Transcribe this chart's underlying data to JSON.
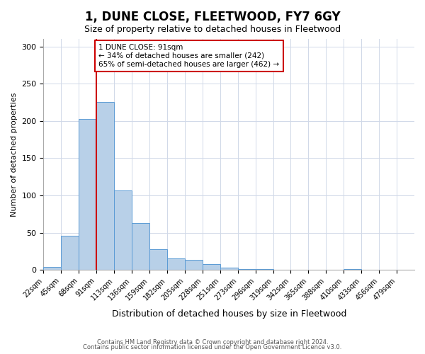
{
  "title": "1, DUNE CLOSE, FLEETWOOD, FY7 6GY",
  "subtitle": "Size of property relative to detached houses in Fleetwood",
  "xlabel": "Distribution of detached houses by size in Fleetwood",
  "ylabel": "Number of detached properties",
  "bar_values": [
    4,
    46,
    203,
    225,
    107,
    63,
    28,
    15,
    14,
    8,
    3,
    1,
    1,
    0,
    0,
    0,
    0,
    1
  ],
  "bin_labels": [
    "22sqm",
    "45sqm",
    "68sqm",
    "91sqm",
    "113sqm",
    "136sqm",
    "159sqm",
    "182sqm",
    "205sqm",
    "228sqm",
    "251sqm",
    "273sqm",
    "296sqm",
    "319sqm",
    "342sqm",
    "365sqm",
    "388sqm",
    "410sqm",
    "433sqm",
    "456sqm",
    "479sqm"
  ],
  "bar_color": "#b8d0e8",
  "bar_edge_color": "#5b9bd5",
  "property_sqm": 91,
  "vline_color": "#cc0000",
  "annotation_text": "1 DUNE CLOSE: 91sqm\n← 34% of detached houses are smaller (242)\n65% of semi-detached houses are larger (462) →",
  "annotation_box_edge": "#cc0000",
  "ylim": [
    0,
    310
  ],
  "yticks": [
    0,
    50,
    100,
    150,
    200,
    250,
    300
  ],
  "footer_line1": "Contains HM Land Registry data © Crown copyright and database right 2024.",
  "footer_line2": "Contains public sector information licensed under the Open Government Licence v3.0.",
  "background_color": "#ffffff",
  "grid_color": "#d0d8e8"
}
